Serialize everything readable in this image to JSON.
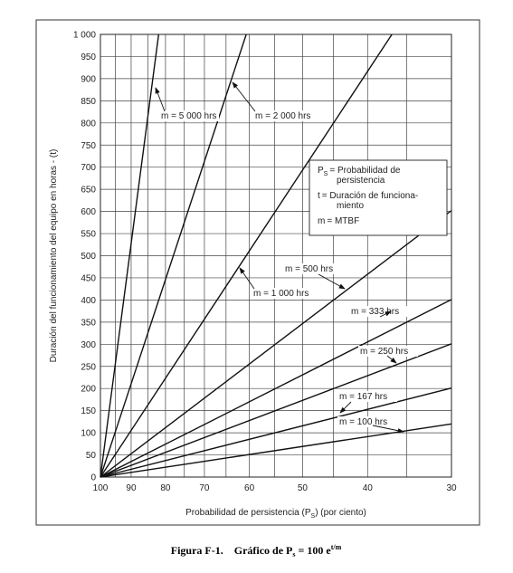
{
  "chart_data": {
    "type": "line",
    "y_label": "Duración del funcionamiento del equipo en horas - (t)",
    "x_label_parts": [
      "Probabilidad de persistencia (P",
      "S",
      ") (por ciento)"
    ],
    "xscale": "log",
    "xlim": [
      100,
      30
    ],
    "xticks": [
      100,
      90,
      80,
      70,
      60,
      50,
      40,
      30
    ],
    "xminorticks": [
      95,
      85,
      75,
      65,
      55,
      45,
      35
    ],
    "ylim": [
      0,
      1000
    ],
    "yticks": [
      0,
      50,
      100,
      150,
      200,
      250,
      300,
      350,
      400,
      450,
      500,
      550,
      600,
      650,
      700,
      750,
      800,
      850,
      900,
      950,
      {
        "value": 1000,
        "label": "1 000"
      }
    ],
    "grid": true,
    "color": "#111111",
    "series": [
      {
        "name": "m = 5 000 hrs",
        "x": [
          100,
          81.9
        ],
        "values": [
          0,
          1000
        ]
      },
      {
        "name": "m = 2 000 hrs",
        "x": [
          100,
          60.65
        ],
        "values": [
          0,
          1000
        ]
      },
      {
        "name": "m = 1 000 hrs",
        "x": [
          100,
          36.8
        ],
        "values": [
          0,
          1000
        ]
      },
      {
        "name": "m = 500 hrs",
        "x": [
          100,
          30
        ],
        "values": [
          0,
          602
        ]
      },
      {
        "name": "m = 333 hrs",
        "x": [
          100,
          30
        ],
        "values": [
          0,
          401
        ]
      },
      {
        "name": "m = 250 hrs",
        "x": [
          100,
          30
        ],
        "values": [
          0,
          301
        ]
      },
      {
        "name": "m = 167 hrs",
        "x": [
          100,
          30
        ],
        "values": [
          0,
          201
        ]
      },
      {
        "name": "m = 100 hrs",
        "x": [
          100,
          30
        ],
        "values": [
          0,
          120
        ]
      }
    ],
    "key": [
      {
        "symbol": "P",
        "sub": "S",
        "lines": [
          "= Probabilidad de",
          "persistencia"
        ]
      },
      {
        "symbol": "t",
        "sub": "",
        "lines": [
          "= Duración de funciona-",
          "miento"
        ]
      },
      {
        "symbol": "m",
        "sub": "",
        "lines": [
          "= MTBF"
        ]
      }
    ],
    "caption": {
      "label": "Figura F-1.",
      "text": "Gráfico de P",
      "sub": "s",
      "text2": " = 100 e",
      "sup": "t/m"
    }
  }
}
